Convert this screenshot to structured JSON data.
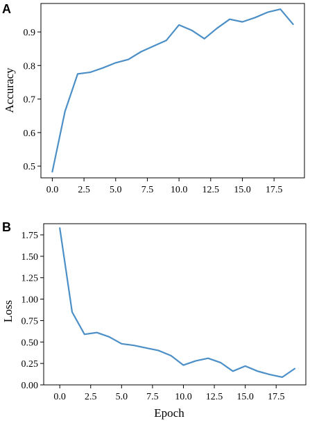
{
  "figure": {
    "panels": [
      {
        "letter": "A",
        "ylabel": "Accuracy",
        "xlabel": ""
      },
      {
        "letter": "B",
        "ylabel": "Loss",
        "xlabel": "Epoch"
      }
    ]
  },
  "chart_data": [
    {
      "type": "line",
      "panel": "A",
      "title": "",
      "xlabel": "",
      "ylabel": "Accuracy",
      "xlim": [
        -0.9,
        19.9
      ],
      "ylim": [
        0.465,
        0.985
      ],
      "xticks": [
        0.0,
        2.5,
        5.0,
        7.5,
        10.0,
        12.5,
        15.0,
        17.5
      ],
      "xtick_labels": [
        "0.0",
        "2.5",
        "5.0",
        "7.5",
        "10.0",
        "12.5",
        "15.0",
        "17.5"
      ],
      "yticks": [
        0.5,
        0.6,
        0.7,
        0.8,
        0.9
      ],
      "ytick_labels": [
        "0.5",
        "0.6",
        "0.7",
        "0.8",
        "0.9"
      ],
      "grid": false,
      "color": "#4c8fc7",
      "series": [
        {
          "x": [
            0,
            1,
            2,
            3,
            4,
            5,
            6,
            7,
            8,
            9,
            10,
            11,
            12,
            13,
            14,
            15,
            16,
            17,
            18,
            19
          ],
          "values": [
            0.483,
            0.663,
            0.775,
            0.78,
            0.793,
            0.808,
            0.818,
            0.841,
            0.858,
            0.875,
            0.921,
            0.905,
            0.88,
            0.911,
            0.938,
            0.93,
            0.943,
            0.959,
            0.968,
            0.923
          ]
        }
      ]
    },
    {
      "type": "line",
      "panel": "B",
      "title": "",
      "xlabel": "Epoch",
      "ylabel": "Loss",
      "xlim": [
        -1.3,
        19.9
      ],
      "ylim": [
        0.0,
        1.88
      ],
      "xticks": [
        0.0,
        2.5,
        5.0,
        7.5,
        10.0,
        12.5,
        15.0,
        17.5
      ],
      "xtick_labels": [
        "0.0",
        "2.5",
        "5.0",
        "7.5",
        "10.0",
        "12.5",
        "15.0",
        "17.5"
      ],
      "yticks": [
        0.0,
        0.25,
        0.5,
        0.75,
        1.0,
        1.25,
        1.5,
        1.75
      ],
      "ytick_labels": [
        "0.00",
        "0.25",
        "0.50",
        "0.75",
        "1.00",
        "1.25",
        "1.50",
        "1.75"
      ],
      "grid": false,
      "color": "#4c8fc7",
      "series": [
        {
          "x": [
            0,
            1,
            2,
            3,
            4,
            5,
            6,
            7,
            8,
            9,
            10,
            11,
            12,
            13,
            14,
            15,
            16,
            17,
            18,
            19
          ],
          "values": [
            1.83,
            0.85,
            0.59,
            0.61,
            0.56,
            0.48,
            0.46,
            0.43,
            0.4,
            0.34,
            0.23,
            0.28,
            0.31,
            0.26,
            0.16,
            0.22,
            0.16,
            0.12,
            0.09,
            0.19
          ]
        }
      ]
    }
  ]
}
